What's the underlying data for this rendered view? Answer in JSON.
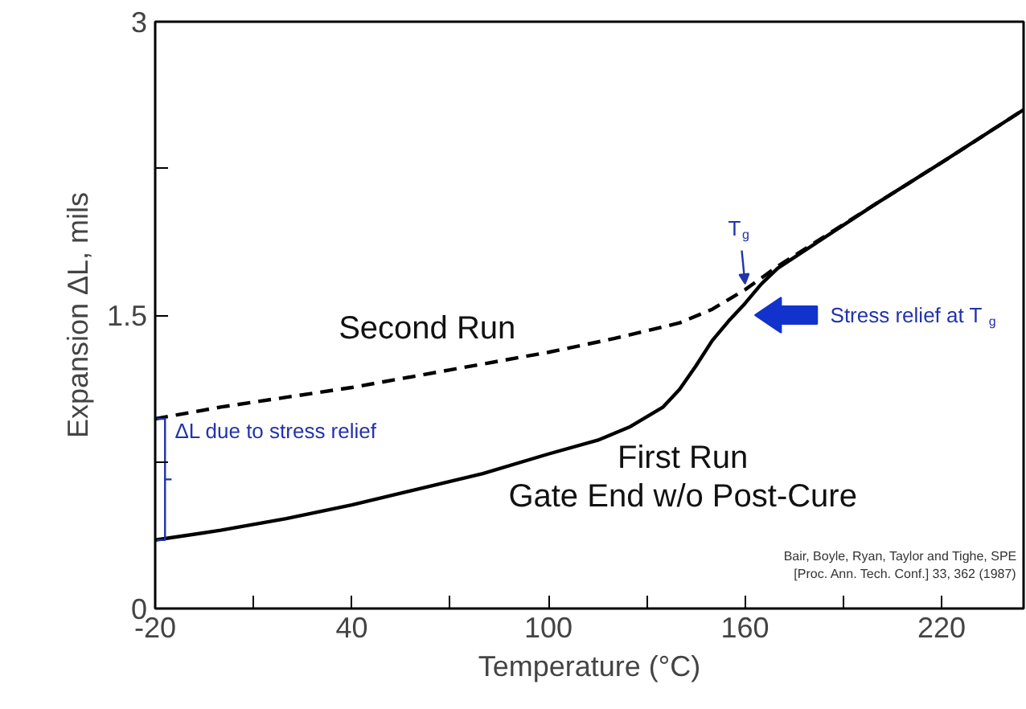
{
  "chart_data": {
    "type": "line",
    "xlabel": "Temperature (°C)",
    "ylabel": "Expansion ΔL, mils",
    "xlim": [
      -20,
      245
    ],
    "ylim": [
      0,
      3
    ],
    "xticks": [
      -20,
      {
        "value": 10,
        "label": null
      },
      40,
      {
        "value": 70,
        "label": null
      },
      100,
      {
        "value": 130,
        "label": null
      },
      160,
      {
        "value": 190,
        "label": null
      },
      220
    ],
    "yticks": [
      0,
      {
        "value": 0.75,
        "label": null
      },
      1.5,
      {
        "value": 2.25,
        "label": null
      },
      3
    ],
    "grid": false,
    "legend": false,
    "marker": "none",
    "series": [
      {
        "name": "Second Run",
        "color": "#000000",
        "line_style": "dashed",
        "x": [
          -20,
          0,
          40,
          70,
          100,
          120,
          140,
          150,
          160,
          170,
          200,
          220,
          245
        ],
        "values": [
          0.97,
          1.03,
          1.13,
          1.22,
          1.31,
          1.38,
          1.46,
          1.53,
          1.63,
          1.75,
          2.07,
          2.28,
          2.55
        ]
      },
      {
        "name": "First Run",
        "color": "#000000",
        "line_style": "solid",
        "x": [
          -20,
          0,
          20,
          40,
          60,
          80,
          100,
          115,
          125,
          135,
          140,
          145,
          150,
          155,
          160,
          165,
          170,
          200,
          220,
          245
        ],
        "values": [
          0.35,
          0.4,
          0.46,
          0.53,
          0.61,
          0.69,
          0.79,
          0.86,
          0.93,
          1.03,
          1.12,
          1.24,
          1.37,
          1.47,
          1.56,
          1.66,
          1.74,
          2.07,
          2.28,
          2.55
        ]
      }
    ],
    "annotations": [
      {
        "text": "T$_{g}$",
        "x": 160,
        "y": 1.63
      },
      "Stress relief at T$_{g}$",
      {
        "text": "ΔL due to stress relief",
        "x": -20,
        "y": 0.97
      },
      "Gate End w/o Post-Cure",
      "Bair, Boyle, Ryan, Taylor and Tighe, SPE\n[Proc. Ann. Tech. Conf.] 33, 362 (1987)"
    ]
  }
}
